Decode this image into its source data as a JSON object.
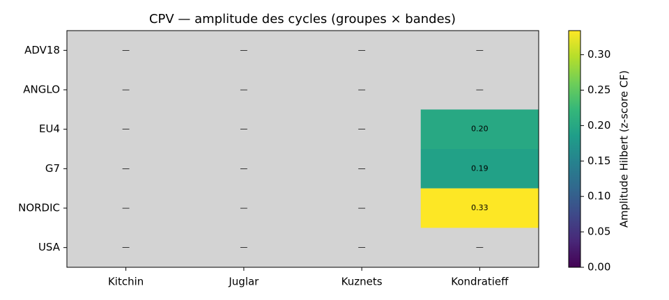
{
  "chart_data": {
    "type": "heatmap",
    "title": "CPV — amplitude des cycles (groupes × bandes)",
    "x_categories": [
      "Kitchin",
      "Juglar",
      "Kuznets",
      "Kondratieff"
    ],
    "y_categories": [
      "ADV18",
      "ANGLO",
      "EU4",
      "G7",
      "NORDIC",
      "USA"
    ],
    "values": [
      [
        null,
        null,
        null,
        null
      ],
      [
        null,
        null,
        null,
        null
      ],
      [
        null,
        null,
        null,
        0.2
      ],
      [
        null,
        null,
        null,
        0.19
      ],
      [
        null,
        null,
        null,
        0.334
      ],
      [
        null,
        null,
        null,
        null
      ]
    ],
    "value_labels": [
      [
        null,
        null,
        null,
        null
      ],
      [
        null,
        null,
        null,
        null
      ],
      [
        null,
        null,
        null,
        "0.20"
      ],
      [
        null,
        null,
        null,
        "0.19"
      ],
      [
        null,
        null,
        null,
        "0.33"
      ],
      [
        null,
        null,
        null,
        null
      ]
    ],
    "missing_label": "—",
    "missing_color": "#d3d3d3",
    "colormap": "viridis",
    "colorbar_label": "Amplitude Hilbert (z-score CF)",
    "clim": [
      0,
      0.334
    ],
    "cticks": [
      {
        "value": 0,
        "label": "0.00"
      },
      {
        "value": 0.05,
        "label": "0.05"
      },
      {
        "value": 0.1,
        "label": "0.10"
      },
      {
        "value": 0.15,
        "label": "0.15"
      },
      {
        "value": 0.2,
        "label": "0.20"
      },
      {
        "value": 0.25,
        "label": "0.25"
      },
      {
        "value": 0.3,
        "label": "0.30"
      }
    ]
  }
}
